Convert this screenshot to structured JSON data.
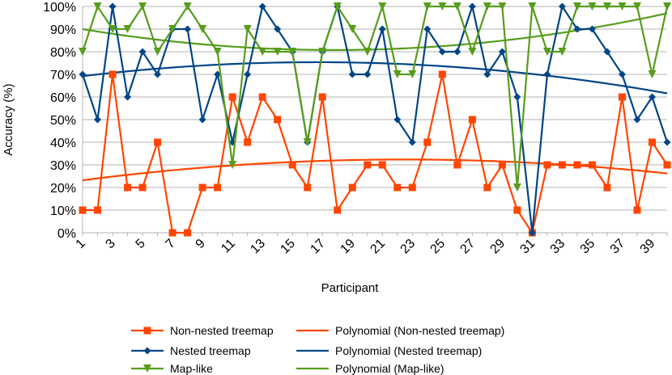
{
  "chart_data": {
    "type": "line",
    "title": "",
    "xlabel": "Participant",
    "ylabel": "Accuracy (%)",
    "ylim": [
      0,
      100
    ],
    "y_ticks": [
      "0%",
      "10%",
      "20%",
      "30%",
      "40%",
      "50%",
      "60%",
      "70%",
      "80%",
      "90%",
      "100%"
    ],
    "x_tick_labels": [
      "1",
      "3",
      "5",
      "7",
      "9",
      "11",
      "13",
      "15",
      "17",
      "19",
      "21",
      "23",
      "25",
      "27",
      "29",
      "31",
      "33",
      "35",
      "37",
      "39"
    ],
    "x": [
      1,
      2,
      3,
      4,
      5,
      6,
      7,
      8,
      9,
      10,
      11,
      12,
      13,
      14,
      15,
      16,
      17,
      18,
      19,
      20,
      21,
      22,
      23,
      24,
      25,
      26,
      27,
      28,
      29,
      30,
      31,
      32,
      33,
      34,
      35,
      36,
      37,
      38,
      39,
      40
    ],
    "legend_position": "bottom",
    "series": [
      {
        "name": "Non-nested treemap",
        "color": "#ff4500",
        "marker": "square",
        "values": [
          10,
          10,
          70,
          20,
          20,
          40,
          0,
          0,
          20,
          20,
          60,
          40,
          60,
          50,
          30,
          20,
          60,
          10,
          20,
          30,
          30,
          20,
          20,
          40,
          70,
          30,
          50,
          20,
          30,
          10,
          0,
          30,
          30,
          30,
          30,
          20,
          60,
          10,
          40,
          30
        ]
      },
      {
        "name": "Nested treemap",
        "color": "#004586",
        "marker": "diamond",
        "values": [
          70,
          50,
          100,
          60,
          80,
          70,
          90,
          90,
          50,
          70,
          40,
          70,
          100,
          90,
          80,
          40,
          80,
          100,
          70,
          70,
          90,
          50,
          40,
          90,
          80,
          80,
          100,
          70,
          80,
          60,
          0,
          70,
          100,
          90,
          90,
          80,
          70,
          50,
          60,
          40
        ]
      },
      {
        "name": "Map-like",
        "color": "#579d1c",
        "marker": "triangle-down",
        "values": [
          80,
          100,
          90,
          90,
          100,
          80,
          90,
          100,
          90,
          80,
          30,
          90,
          80,
          80,
          80,
          40,
          80,
          100,
          90,
          80,
          100,
          70,
          70,
          100,
          100,
          100,
          80,
          100,
          100,
          20,
          100,
          80,
          80,
          100,
          100,
          100,
          100,
          100,
          70,
          100
        ]
      }
    ],
    "trendlines": [
      {
        "name": "Polynomial (Non-nested treemap)",
        "color": "#ff4500",
        "order": 2,
        "values": [
          23.2,
          32.3,
          26.2
        ]
      },
      {
        "name": "Polynomial (Nested treemap)",
        "color": "#004586",
        "order": 2,
        "values": [
          69.2,
          75.0,
          61.6
        ]
      },
      {
        "name": "Polynomial (Map-like)",
        "color": "#579d1c",
        "order": 2,
        "values": [
          90.0,
          81.0,
          97.0
        ]
      }
    ]
  }
}
